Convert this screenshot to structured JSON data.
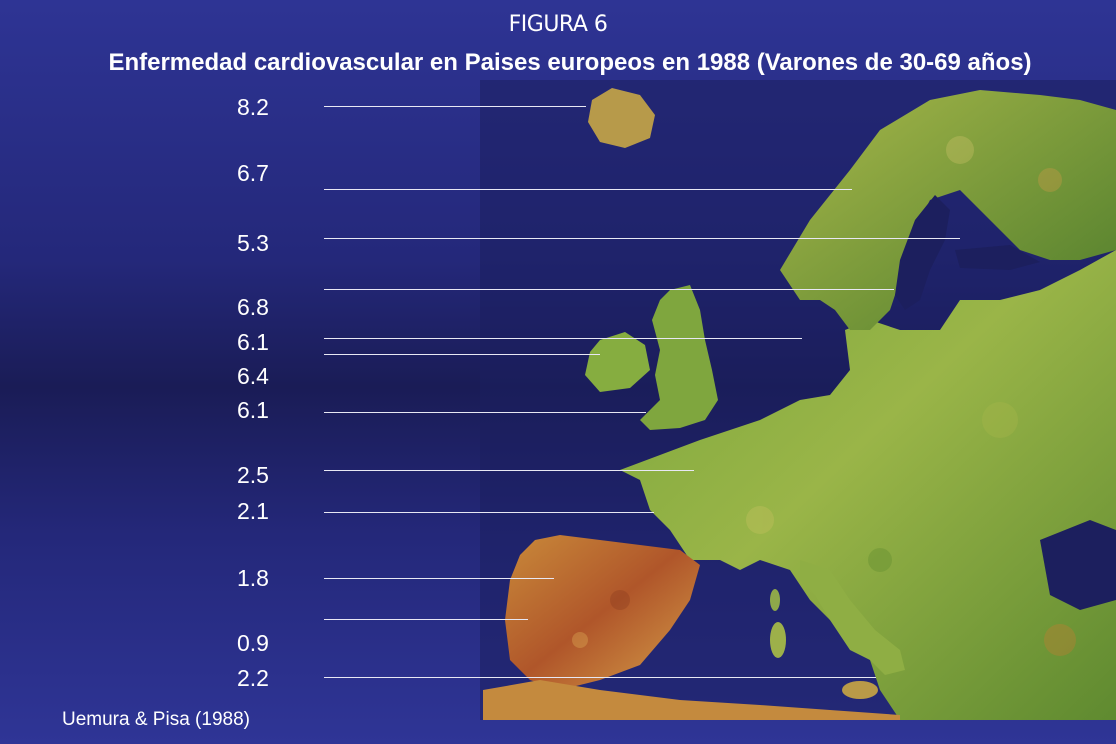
{
  "header": {
    "figure_label": "FIGURA 6",
    "title": "Enfermedad cardiovascular en Paises europeos en 1988 (Varones de 30-69 años)"
  },
  "values": [
    "8.2",
    "6.7",
    "5.3",
    "6.8",
    "6.1",
    "6.4",
    "6.1",
    "2.5",
    "2.1",
    "1.8",
    "0.9",
    "2.2"
  ],
  "source": "Uemura & Pisa (1988)",
  "colors": {
    "background_top": "#2e3494",
    "background_mid": "#1a1c56",
    "sea": "#1c1f5e",
    "land_green": "#6e9a3a",
    "land_yellow": "#c9b24a",
    "land_orange": "#c8702e",
    "text": "#ffffff",
    "leader_line": "#e8e8f4"
  }
}
